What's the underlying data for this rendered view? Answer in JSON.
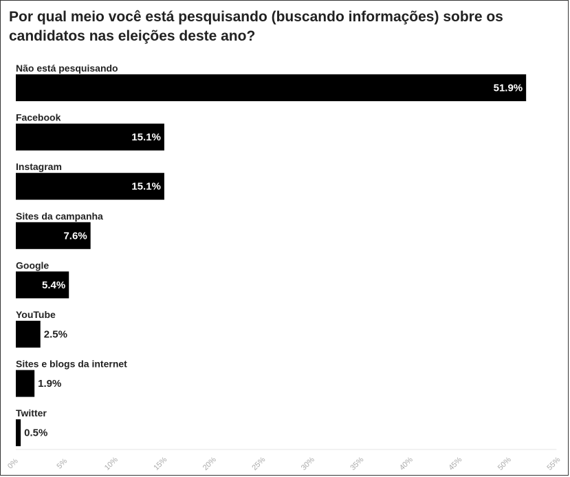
{
  "chart_data": {
    "type": "bar",
    "orientation": "horizontal",
    "title": "Por qual meio você está pesquisando (buscando informações) sobre os candidatos nas eleições deste ano?",
    "categories": [
      "Não está pesquisando",
      "Facebook",
      "Instagram",
      "Sites da campanha",
      "Google",
      "YouTube",
      "Sites e blogs da internet",
      "Twitter"
    ],
    "values": [
      51.9,
      15.1,
      15.1,
      7.6,
      5.4,
      2.5,
      1.9,
      0.5
    ],
    "value_labels": [
      "51.9%",
      "15.1%",
      "15.1%",
      "7.6%",
      "5.4%",
      "2.5%",
      "1.9%",
      "0.5%"
    ],
    "xlim": [
      0,
      55
    ],
    "x_ticks": [
      0,
      5,
      10,
      15,
      20,
      25,
      30,
      35,
      40,
      45,
      50,
      55
    ],
    "x_tick_labels": [
      "0%",
      "5%",
      "10%",
      "15%",
      "20%",
      "25%",
      "30%",
      "35%",
      "40%",
      "45%",
      "50%",
      "55%"
    ],
    "bar_color": "#000000",
    "grid": false
  }
}
